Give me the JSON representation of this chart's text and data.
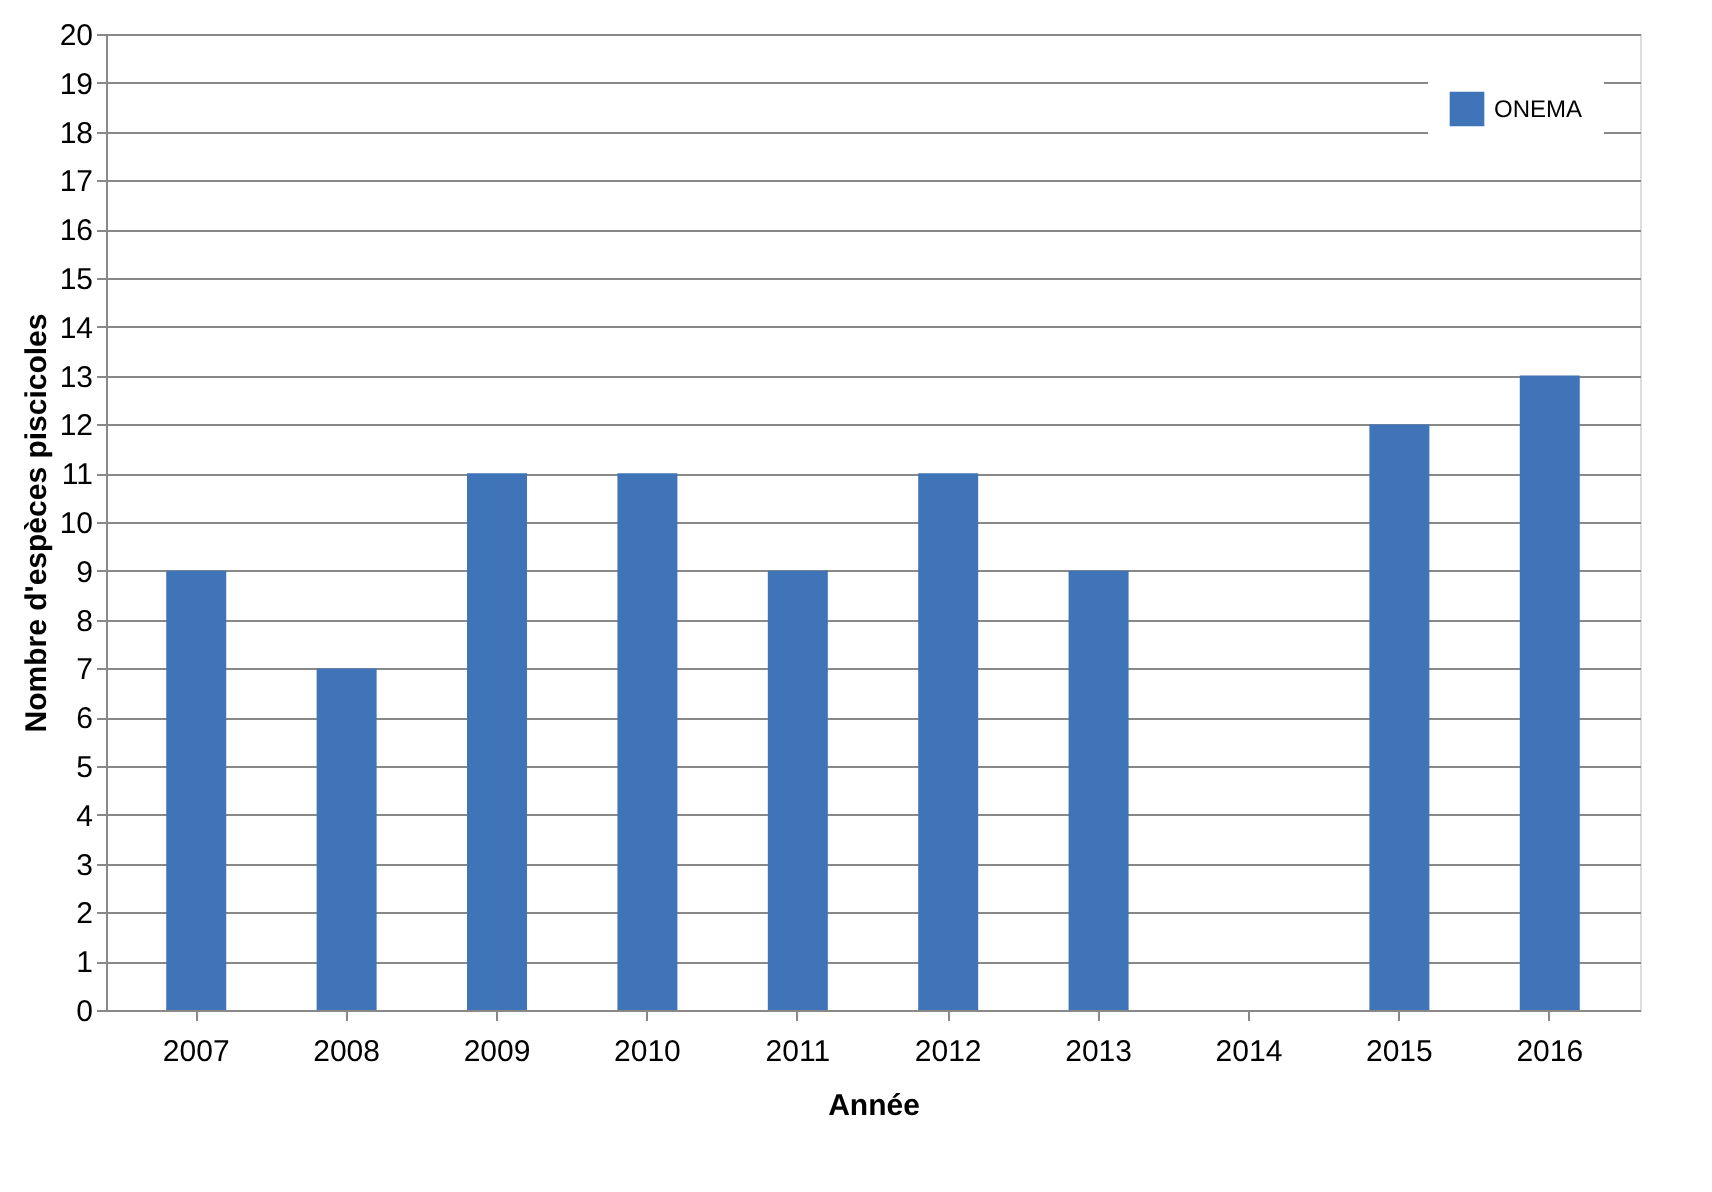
{
  "chart_data": {
    "type": "bar",
    "xlabel": "Année",
    "ylabel": "Nombre d'espèces piscicoles",
    "categories": [
      "2007",
      "2008",
      "2009",
      "2010",
      "2011",
      "2012",
      "2013",
      "2014",
      "2015",
      "2016"
    ],
    "series": [
      {
        "name": "ONEMA",
        "color": "#3f74b8",
        "values": [
          9,
          7,
          11,
          11,
          9,
          11,
          9,
          null,
          12,
          13
        ]
      }
    ],
    "ylim": [
      0,
      20
    ],
    "yticks": [
      0,
      1,
      2,
      3,
      4,
      5,
      6,
      7,
      8,
      9,
      10,
      11,
      12,
      13,
      14,
      15,
      16,
      17,
      18,
      19,
      20
    ],
    "grid": "y",
    "legend": "top right"
  }
}
